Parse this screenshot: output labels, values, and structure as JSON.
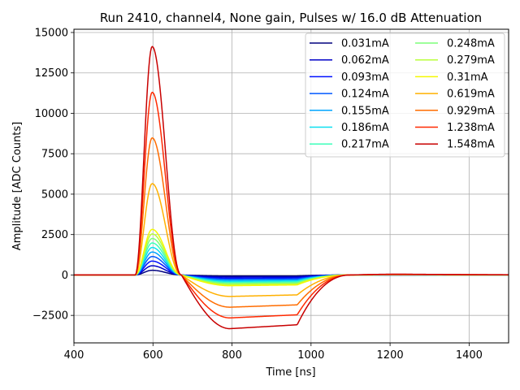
{
  "chart_data": {
    "type": "line",
    "title": "Run 2410, channel4, None gain, Pulses w/ 16.0 dB Attenuation",
    "xlabel": "Time [ns]",
    "ylabel": "Amplitude [ADC Counts]",
    "xlim": [
      400,
      1500
    ],
    "ylim": [
      -4200,
      15200
    ],
    "xticks": [
      400,
      600,
      800,
      1000,
      1200,
      1400
    ],
    "yticks": [
      -2500,
      0,
      2500,
      5000,
      7500,
      10000,
      12500,
      15000
    ],
    "grid": true,
    "legend": {
      "location": "upper right",
      "columns": 2
    },
    "pulse_shape": {
      "onset_ns": 555,
      "peak_ns": 598,
      "zero_crossing_ns": 672,
      "undershoot_min_ns": 795,
      "undershoot_end_ns": 965,
      "recovery_ns": 1100,
      "overshoot_ns": 1230,
      "undershoot_ratio": -0.235,
      "undershoot_end_ratio": -0.218,
      "overshoot_ratio": 0.0035
    },
    "series": [
      {
        "name": "0.031mA",
        "peak": 290,
        "color": "#00007f"
      },
      {
        "name": "0.062mA",
        "peak": 570,
        "color": "#0000c8"
      },
      {
        "name": "0.093mA",
        "peak": 860,
        "color": "#0010ff"
      },
      {
        "name": "0.124mA",
        "peak": 1140,
        "color": "#0058ff"
      },
      {
        "name": "0.155mA",
        "peak": 1420,
        "color": "#00a4ff"
      },
      {
        "name": "0.186mA",
        "peak": 1700,
        "color": "#0ce0f0"
      },
      {
        "name": "0.217mA",
        "peak": 1980,
        "color": "#3dffba"
      },
      {
        "name": "0.248mA",
        "peak": 2260,
        "color": "#7dff7a"
      },
      {
        "name": "0.279mA",
        "peak": 2540,
        "color": "#baff3c"
      },
      {
        "name": "0.31mA",
        "peak": 2820,
        "color": "#f4f802"
      },
      {
        "name": "0.619mA",
        "peak": 5650,
        "color": "#ffb000"
      },
      {
        "name": "0.929mA",
        "peak": 8480,
        "color": "#ff6c00"
      },
      {
        "name": "1.238mA",
        "peak": 11300,
        "color": "#ff2900"
      },
      {
        "name": "1.548mA",
        "peak": 14130,
        "color": "#c80000"
      }
    ]
  }
}
